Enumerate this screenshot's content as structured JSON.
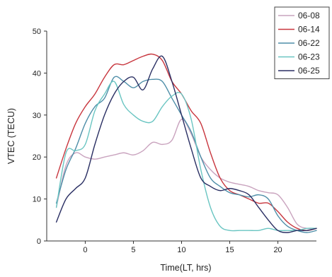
{
  "chart_data": {
    "type": "line",
    "xlabel": "Time(LT, hrs)",
    "ylabel": "VTEC (TECU)",
    "xlim": [
      -4,
      24
    ],
    "ylim": [
      0,
      50
    ],
    "xticks": [
      0,
      5,
      10,
      15,
      20
    ],
    "yticks": [
      0,
      10,
      20,
      30,
      40,
      50
    ],
    "grid": false,
    "legend_position": "top-right",
    "series": [
      {
        "name": "06-08",
        "color": "#c9a3be",
        "x": [
          -3,
          -2,
          -1,
          0,
          1,
          2,
          3,
          4,
          5,
          6,
          7,
          8,
          9,
          10,
          11,
          12,
          13,
          14,
          15,
          16,
          17,
          18,
          19,
          20,
          21,
          22,
          23,
          24
        ],
        "y": [
          8,
          18,
          21,
          20,
          19.5,
          20,
          20.5,
          21,
          20.5,
          21.5,
          23.5,
          23,
          24,
          29,
          25.5,
          20,
          17,
          15,
          14,
          13.5,
          13,
          12,
          11.5,
          11,
          8,
          4,
          3,
          3
        ]
      },
      {
        "name": "06-14",
        "color": "#c8363e",
        "x": [
          -3,
          -2,
          -1,
          0,
          1,
          2,
          3,
          4,
          5,
          6,
          7,
          8,
          9,
          10,
          11,
          12,
          13,
          14,
          15,
          16,
          17,
          18,
          19,
          20,
          21,
          22,
          23,
          24
        ],
        "y": [
          15,
          22,
          28,
          32,
          35,
          39,
          42,
          42,
          43,
          44,
          44.5,
          43,
          38,
          35,
          31,
          28,
          21,
          15,
          12,
          11,
          10,
          9,
          9,
          7,
          4.5,
          3,
          2.5,
          3
        ]
      },
      {
        "name": "06-22",
        "color": "#4e8ea8",
        "x": [
          -3,
          -2,
          -1,
          0,
          1,
          2,
          3,
          4,
          5,
          6,
          7,
          8,
          9,
          10,
          11,
          12,
          13,
          14,
          15,
          16,
          17,
          18,
          19,
          20,
          21,
          22,
          23,
          24
        ],
        "y": [
          9,
          17,
          22,
          28,
          32,
          34,
          39,
          38,
          36.5,
          38,
          38.5,
          38,
          34,
          30,
          26,
          20,
          15,
          13,
          11.5,
          11,
          10.5,
          11,
          10,
          6,
          3.5,
          2.5,
          2,
          2.5
        ]
      },
      {
        "name": "06-23",
        "color": "#6ac5c2",
        "x": [
          -3,
          -2,
          -1,
          0,
          1,
          2,
          3,
          4,
          5,
          6,
          7,
          8,
          9,
          10,
          11,
          12,
          13,
          14,
          15,
          16,
          17,
          18,
          19,
          20,
          21,
          22,
          23,
          24
        ],
        "y": [
          8,
          21,
          21.5,
          23,
          31,
          35,
          38,
          32.5,
          30,
          28.5,
          28.5,
          32,
          34.5,
          35,
          29,
          17,
          8,
          3.5,
          2.5,
          2.5,
          2.5,
          2.5,
          3,
          2.5,
          2.5,
          2.5,
          3,
          3
        ]
      },
      {
        "name": "06-25",
        "color": "#2a2f63",
        "x": [
          -3,
          -2,
          -1,
          0,
          1,
          2,
          3,
          4,
          5,
          6,
          7,
          8,
          9,
          10,
          11,
          12,
          13,
          14,
          15,
          16,
          17,
          18,
          19,
          20,
          21,
          22,
          23,
          24
        ],
        "y": [
          4.5,
          10,
          12.5,
          15,
          23,
          30,
          35,
          38,
          39,
          36,
          41,
          44,
          38,
          30,
          22,
          15,
          13,
          12,
          12.5,
          12,
          11,
          8,
          5,
          2.5,
          2,
          2.5,
          2.5,
          3
        ]
      }
    ]
  }
}
